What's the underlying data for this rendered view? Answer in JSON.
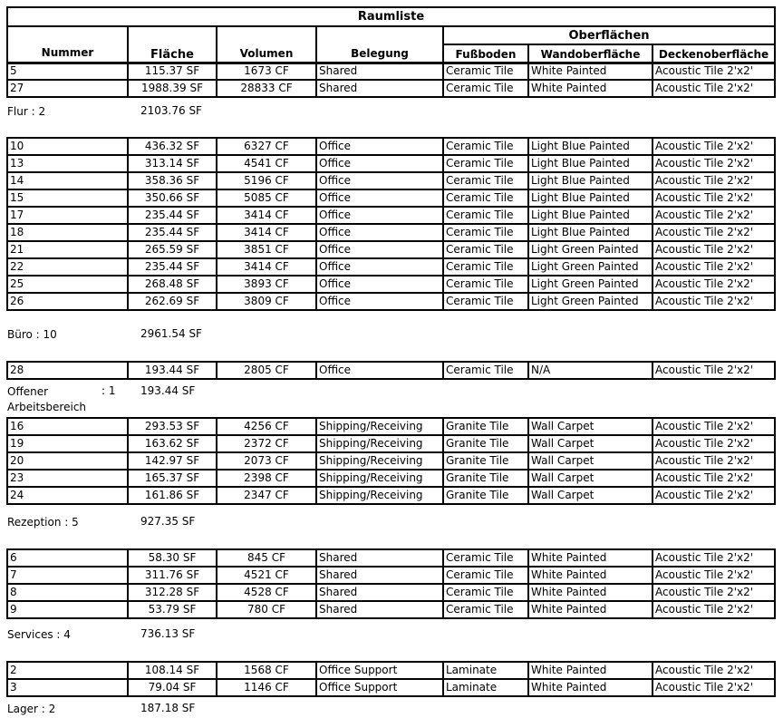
{
  "title": "Raumliste",
  "headers": {
    "nummer": "Nummer",
    "flaeche": "Fläche",
    "volumen": "Volumen",
    "belegung": "Belegung",
    "oberflaechen": "Oberflächen",
    "fussboden": "Fußboden",
    "wand": "Wandoberfläche",
    "decke": "Deckenoberfläche"
  },
  "groups": [
    {
      "label": "Flur",
      "count": ": 2",
      "total": "2103.76 SF",
      "rows": [
        [
          "5",
          "115.37 SF",
          "1673 CF",
          "Shared",
          "Ceramic Tile",
          "White Painted",
          "Acoustic Tile 2'x2'"
        ],
        [
          "27",
          "1988.39 SF",
          "28833 CF",
          "Shared",
          "Ceramic Tile",
          "White Painted",
          "Acoustic Tile 2'x2'"
        ]
      ]
    },
    {
      "label": "Büro",
      "count": ": 10",
      "total": "2961.54 SF",
      "rows": [
        [
          "10",
          "436.32 SF",
          "6327 CF",
          "Office",
          "Ceramic Tile",
          "Light Blue Painted",
          "Acoustic Tile 2'x2'"
        ],
        [
          "13",
          "313.14 SF",
          "4541 CF",
          "Office",
          "Ceramic Tile",
          "Light Blue Painted",
          "Acoustic Tile 2'x2'"
        ],
        [
          "14",
          "358.36 SF",
          "5196 CF",
          "Office",
          "Ceramic Tile",
          "Light Blue Painted",
          "Acoustic Tile 2'x2'"
        ],
        [
          "15",
          "350.66 SF",
          "5085 CF",
          "Office",
          "Ceramic Tile",
          "Light Blue Painted",
          "Acoustic Tile 2'x2'"
        ],
        [
          "17",
          "235.44 SF",
          "3414 CF",
          "Office",
          "Ceramic Tile",
          "Light Blue Painted",
          "Acoustic Tile 2'x2'"
        ],
        [
          "18",
          "235.44 SF",
          "3414 CF",
          "Office",
          "Ceramic Tile",
          "Light Blue Painted",
          "Acoustic Tile 2'x2'"
        ],
        [
          "21",
          "265.59 SF",
          "3851 CF",
          "Office",
          "Ceramic Tile",
          "Light Green Painted",
          "Acoustic Tile 2'x2'"
        ],
        [
          "22",
          "235.44 SF",
          "3414 CF",
          "Office",
          "Ceramic Tile",
          "Light Green Painted",
          "Acoustic Tile 2'x2'"
        ],
        [
          "25",
          "268.48 SF",
          "3893 CF",
          "Office",
          "Ceramic Tile",
          "Light Green Painted",
          "Acoustic Tile 2'x2'"
        ],
        [
          "26",
          "262.69 SF",
          "3809 CF",
          "Office",
          "Ceramic Tile",
          "Light Green Painted",
          "Acoustic Tile 2'x2'"
        ]
      ]
    },
    {
      "label": "Offener Arbeitsbereich",
      "count": ": 1",
      "total": "193.44 SF",
      "rows": [
        [
          "28",
          "193.44 SF",
          "2805 CF",
          "Office",
          "Ceramic Tile",
          "N/A",
          "Acoustic Tile 2'x2'"
        ]
      ]
    },
    {
      "label": "Rezeption",
      "count": ": 5",
      "total": "927.35 SF",
      "rows": [
        [
          "16",
          "293.53 SF",
          "4256 CF",
          "Shipping/Receiving",
          "Granite Tile",
          "Wall Carpet",
          "Acoustic Tile 2'x2'"
        ],
        [
          "19",
          "163.62 SF",
          "2372 CF",
          "Shipping/Receiving",
          "Granite Tile",
          "Wall Carpet",
          "Acoustic Tile 2'x2'"
        ],
        [
          "20",
          "142.97 SF",
          "2073 CF",
          "Shipping/Receiving",
          "Granite Tile",
          "Wall Carpet",
          "Acoustic Tile 2'x2'"
        ],
        [
          "23",
          "165.37 SF",
          "2398 CF",
          "Shipping/Receiving",
          "Granite Tile",
          "Wall Carpet",
          "Acoustic Tile 2'x2'"
        ],
        [
          "24",
          "161.86 SF",
          "2347 CF",
          "Shipping/Receiving",
          "Granite Tile",
          "Wall Carpet",
          "Acoustic Tile 2'x2'"
        ]
      ]
    },
    {
      "label": "Services",
      "count": ": 4",
      "total": "736.13 SF",
      "rows": [
        [
          "6",
          "58.30 SF",
          "845 CF",
          "Shared",
          "Ceramic Tile",
          "White Painted",
          "Acoustic Tile 2'x2'"
        ],
        [
          "7",
          "311.76 SF",
          "4521 CF",
          "Shared",
          "Ceramic Tile",
          "White Painted",
          "Acoustic Tile 2'x2'"
        ],
        [
          "8",
          "312.28 SF",
          "4528 CF",
          "Shared",
          "Ceramic Tile",
          "White Painted",
          "Acoustic Tile 2'x2'"
        ],
        [
          "9",
          "53.79 SF",
          "780 CF",
          "Shared",
          "Ceramic Tile",
          "White Painted",
          "Acoustic Tile 2'x2'"
        ]
      ]
    },
    {
      "label": "Lager",
      "count": ": 2",
      "total": "187.18 SF",
      "rows": [
        [
          "2",
          "108.14 SF",
          "1568 CF",
          "Office Support",
          "Laminate",
          "White Painted",
          "Acoustic Tile 2'x2'"
        ],
        [
          "3",
          "79.04 SF",
          "1146 CF",
          "Office Support",
          "Laminate",
          "White Painted",
          "Acoustic Tile 2'x2'"
        ]
      ]
    }
  ]
}
